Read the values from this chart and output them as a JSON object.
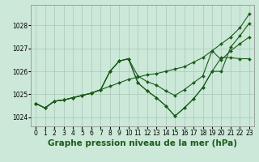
{
  "background_color": "#cce8d8",
  "grid_color": "#a8c8b8",
  "line_color": "#1a5c1a",
  "marker_style": "D",
  "marker_size": 2.0,
  "line_width": 0.8,
  "xlabel": "Graphe pression niveau de la mer (hPa)",
  "xlabel_fontsize": 7.5,
  "tick_fontsize": 5.5,
  "xlim": [
    -0.5,
    23.5
  ],
  "ylim": [
    1023.6,
    1028.9
  ],
  "yticks": [
    1024,
    1025,
    1026,
    1027,
    1028
  ],
  "xticks": [
    0,
    1,
    2,
    3,
    4,
    5,
    6,
    7,
    8,
    9,
    10,
    11,
    12,
    13,
    14,
    15,
    16,
    17,
    18,
    19,
    20,
    21,
    22,
    23
  ],
  "series": [
    [
      1024.6,
      1024.4,
      1024.7,
      1024.75,
      1024.85,
      1024.95,
      1025.05,
      1025.2,
      1025.35,
      1025.5,
      1025.65,
      1025.75,
      1025.85,
      1025.9,
      1026.0,
      1026.1,
      1026.2,
      1026.4,
      1026.6,
      1026.9,
      1027.2,
      1027.5,
      1027.9,
      1028.5
    ],
    [
      1024.6,
      1024.4,
      1024.7,
      1024.75,
      1024.85,
      1024.95,
      1025.05,
      1025.2,
      1026.0,
      1026.45,
      1026.55,
      1025.8,
      1025.55,
      1025.4,
      1025.15,
      1024.95,
      1025.2,
      1025.5,
      1025.8,
      1026.9,
      1026.5,
      1026.9,
      1027.2,
      1027.5
    ],
    [
      1024.6,
      1024.4,
      1024.7,
      1024.75,
      1024.85,
      1024.95,
      1025.05,
      1025.2,
      1026.0,
      1026.45,
      1026.55,
      1025.5,
      1025.15,
      1024.85,
      1024.5,
      1024.05,
      1024.4,
      1024.8,
      1025.3,
      1026.0,
      1026.6,
      1026.6,
      1026.55,
      1026.55
    ],
    [
      1024.6,
      1024.4,
      1024.7,
      1024.75,
      1024.85,
      1024.95,
      1025.05,
      1025.2,
      1026.0,
      1026.45,
      1026.55,
      1025.5,
      1025.15,
      1024.85,
      1024.5,
      1024.05,
      1024.4,
      1024.8,
      1025.3,
      1026.0,
      1026.0,
      1027.05,
      1027.55,
      1028.1
    ]
  ]
}
